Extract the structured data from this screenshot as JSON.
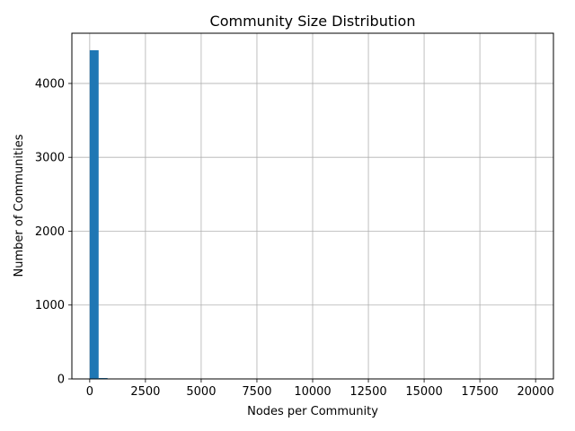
{
  "chart_data": {
    "type": "bar",
    "title": "Community Size Distribution",
    "xlabel": "Nodes per Community",
    "ylabel": "Number of Communities",
    "xlim": [
      -800,
      20800
    ],
    "ylim": [
      0,
      4680
    ],
    "x_ticks": [
      0,
      2500,
      5000,
      7500,
      10000,
      12500,
      15000,
      17500,
      20000
    ],
    "x_tick_labels": [
      "0",
      "2500",
      "5000",
      "7500",
      "10000",
      "12500",
      "15000",
      "17500",
      "20000"
    ],
    "y_ticks": [
      0,
      1000,
      2000,
      3000,
      4000
    ],
    "y_tick_labels": [
      "0",
      "1000",
      "2000",
      "3000",
      "4000"
    ],
    "grid": true,
    "bar_color": "#1f77b4",
    "bin_width": 400,
    "bins": [
      {
        "x0": 0,
        "x1": 400,
        "count": 4450
      },
      {
        "x0": 400,
        "x1": 800,
        "count": 12
      },
      {
        "x0": 800,
        "x1": 1200,
        "count": 6
      },
      {
        "x0": 1200,
        "x1": 1600,
        "count": 4
      },
      {
        "x0": 1600,
        "x1": 2000,
        "count": 2
      },
      {
        "x0": 2000,
        "x1": 2400,
        "count": 3
      },
      {
        "x0": 2400,
        "x1": 2800,
        "count": 1
      },
      {
        "x0": 2800,
        "x1": 3200,
        "count": 4
      },
      {
        "x0": 3200,
        "x1": 3600,
        "count": 1
      },
      {
        "x0": 3600,
        "x1": 4000,
        "count": 1
      },
      {
        "x0": 4000,
        "x1": 4400,
        "count": 1
      },
      {
        "x0": 4800,
        "x1": 5200,
        "count": 1
      },
      {
        "x0": 5600,
        "x1": 6000,
        "count": 1
      },
      {
        "x0": 7200,
        "x1": 7600,
        "count": 1
      },
      {
        "x0": 9600,
        "x1": 10000,
        "count": 1
      },
      {
        "x0": 19600,
        "x1": 20000,
        "count": 1
      }
    ]
  }
}
